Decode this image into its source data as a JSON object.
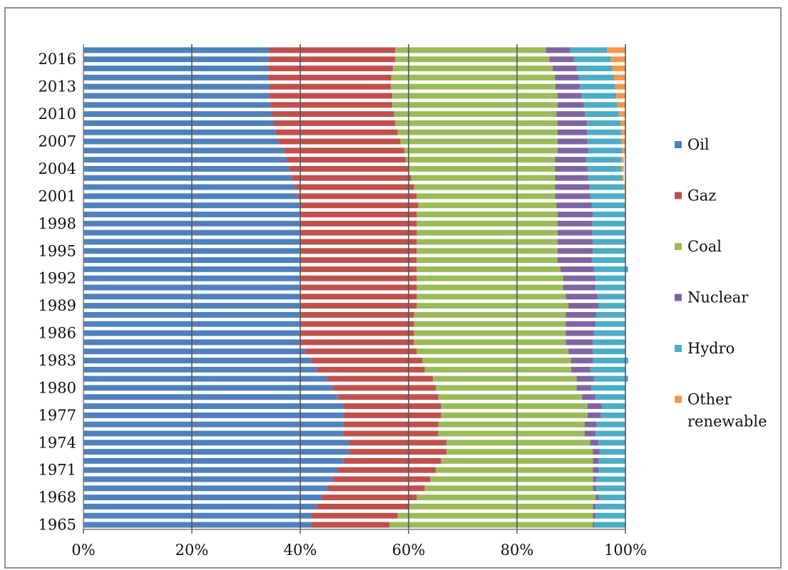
{
  "chart_data": {
    "type": "bar",
    "orientation": "horizontal",
    "stacking": "percent",
    "title": "",
    "xlabel": "",
    "ylabel": "",
    "xlim": [
      0,
      100
    ],
    "x_ticks": [
      "0%",
      "20%",
      "40%",
      "60%",
      "80%",
      "100%"
    ],
    "y_tick_labels": [
      "2016",
      "2013",
      "2010",
      "2007",
      "2004",
      "2001",
      "1998",
      "1995",
      "1992",
      "1989",
      "1986",
      "1983",
      "1980",
      "1977",
      "1974",
      "1971",
      "1968",
      "1965"
    ],
    "grid": "vertical",
    "legend_position": "right",
    "categories": [
      "1965",
      "1966",
      "1967",
      "1968",
      "1969",
      "1970",
      "1971",
      "1972",
      "1973",
      "1974",
      "1975",
      "1976",
      "1977",
      "1978",
      "1979",
      "1980",
      "1981",
      "1982",
      "1983",
      "1984",
      "1985",
      "1986",
      "1987",
      "1988",
      "1989",
      "1990",
      "1991",
      "1992",
      "1993",
      "1994",
      "1995",
      "1996",
      "1997",
      "1998",
      "1999",
      "2000",
      "2001",
      "2002",
      "2003",
      "2004",
      "2005",
      "2006",
      "2007",
      "2008",
      "2009",
      "2010",
      "2011",
      "2012",
      "2013",
      "2014",
      "2015",
      "2016",
      "2017"
    ],
    "series": [
      {
        "name": "Oil",
        "color": "#4f81bd",
        "values": [
          42,
          42,
          43,
          44,
          45,
          46,
          47,
          48,
          49,
          49,
          48,
          48,
          48,
          48,
          47,
          46,
          45,
          43,
          42,
          41,
          40,
          40,
          40,
          40,
          40,
          40,
          40,
          40,
          40,
          40,
          40,
          40,
          40,
          40,
          40,
          40,
          39.5,
          39,
          38.5,
          38,
          37.5,
          37,
          36,
          35.5,
          35,
          34.8,
          34.5,
          34.3,
          34.2,
          34.1,
          34.1,
          34.2,
          34.2
        ]
      },
      {
        "name": "Gaz",
        "color": "#c0504d",
        "values": [
          14.5,
          16,
          17,
          17.5,
          18,
          18,
          18,
          18,
          18,
          18,
          17.5,
          17.5,
          18,
          18,
          18.5,
          19,
          19.5,
          20,
          20.5,
          20.5,
          21,
          21,
          21,
          21,
          21.5,
          21.5,
          21.5,
          21.5,
          21.5,
          21.5,
          21.5,
          21.5,
          21.5,
          21.5,
          21.5,
          21.8,
          22,
          22,
          22,
          22,
          22,
          22.2,
          22.5,
          22.5,
          22.5,
          22.5,
          22.5,
          22.7,
          22.5,
          22.7,
          23,
          23.3,
          23.3
        ]
      },
      {
        "name": "Coal",
        "color": "#9bbb59",
        "values": [
          37.5,
          36,
          34,
          33,
          31,
          30,
          29,
          28,
          27,
          26.5,
          27,
          27,
          27,
          27,
          26.5,
          26,
          26.5,
          27,
          27.5,
          28,
          28,
          28,
          28,
          28,
          28,
          27.5,
          27,
          27,
          26.5,
          26,
          26,
          26,
          26,
          26,
          26,
          25.5,
          25.5,
          26,
          26.5,
          27,
          27.5,
          28.3,
          29,
          29.5,
          30,
          30,
          30.5,
          30.5,
          30.4,
          30.2,
          29.5,
          28.5,
          27.8
        ]
      },
      {
        "name": "Nuclear",
        "color": "#8064a2",
        "values": [
          0.3,
          0.5,
          0.5,
          0.6,
          0.6,
          0.7,
          1,
          1.1,
          1.2,
          1.5,
          2,
          2.2,
          2.5,
          2.6,
          2.5,
          2.7,
          3.2,
          3.5,
          4,
          4.5,
          5,
          5.2,
          5.5,
          5.6,
          5.5,
          5.8,
          6,
          6,
          6.2,
          6.3,
          6.5,
          6.5,
          6.4,
          6.4,
          6.5,
          6.5,
          6.5,
          6.4,
          6.1,
          6,
          5.8,
          5.6,
          5.5,
          5.4,
          5.4,
          5.2,
          4.8,
          4.4,
          4.5,
          4.4,
          4.4,
          4.5,
          4.5
        ]
      },
      {
        "name": "Hydro",
        "color": "#4bacc6",
        "values": [
          5.7,
          5.5,
          5.5,
          4.9,
          5.4,
          5.3,
          5,
          4.9,
          4.8,
          5,
          5.5,
          5.3,
          4.5,
          4.4,
          5.5,
          6.3,
          6.3,
          6.5,
          6.5,
          6,
          6,
          5.8,
          5.5,
          5.4,
          5,
          5.2,
          5.5,
          5.5,
          6.3,
          6.2,
          6,
          6,
          6.1,
          6.1,
          6,
          6.2,
          6.3,
          6.3,
          6.3,
          6.3,
          6.4,
          6.3,
          6.2,
          6.3,
          6.2,
          6.3,
          6.2,
          6.4,
          6.5,
          6.5,
          6.6,
          6.8,
          6.8
        ]
      },
      {
        "name": "Other renewable",
        "color": "#f79646",
        "values": [
          0,
          0,
          0,
          0,
          0,
          0,
          0,
          0,
          0,
          0,
          0,
          0,
          0,
          0,
          0,
          0,
          0,
          0,
          0,
          0,
          0,
          0,
          0,
          0,
          0,
          0,
          0,
          0,
          0,
          0,
          0,
          0,
          0,
          0,
          0,
          0,
          0.2,
          0.3,
          0.3,
          0.4,
          0.5,
          0.6,
          0.8,
          0.8,
          0.9,
          1.2,
          1.5,
          1.7,
          1.9,
          2.1,
          2.4,
          2.7,
          3.4
        ]
      }
    ]
  }
}
